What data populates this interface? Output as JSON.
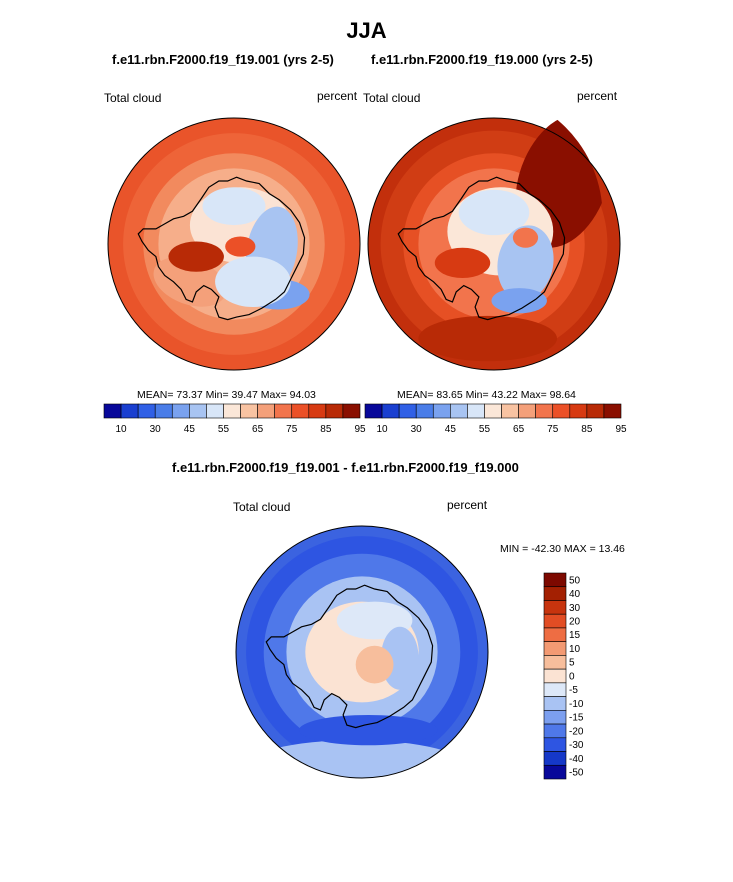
{
  "figure": {
    "title": "JJA",
    "left_panel_title": "f.e11.rbn.F2000.f19_f19.001 (yrs 2-5)",
    "right_panel_title": "f.e11.rbn.F2000.f19_f19.000 (yrs 2-5)",
    "diff_panel_title": "f.e11.rbn.F2000.f19_f19.001 - f.e11.rbn.F2000.f19_f19.000"
  },
  "colors": {
    "abs_scale": [
      "#08089a",
      "#1a3fd0",
      "#3060e6",
      "#4a7de8",
      "#7aa2ef",
      "#a8c4f2",
      "#d8e6f8",
      "#fbe7d8",
      "#f8c3a2",
      "#f4a07a",
      "#f2744c",
      "#eb5027",
      "#d73a12",
      "#b82a06",
      "#8a0f00"
    ],
    "diff_scale": [
      "#08089a",
      "#1538c8",
      "#2e55e2",
      "#4f78e9",
      "#7c9fef",
      "#a9c3f3",
      "#dde8f8",
      "#fbe3d3",
      "#f7be9c",
      "#f39a73",
      "#ee6d43",
      "#e24d24",
      "#c7340e",
      "#a32002",
      "#7d0900"
    ],
    "ocean_left_base": "#e9542a",
    "ocean_right_base": "#c22f0c",
    "ocean_diff_base": "#3b63e0"
  },
  "chart_data": [
    {
      "type": "heatmap",
      "projection": "south-polar-stereographic",
      "subtitle": "Total cloud",
      "units": "percent",
      "stats": {
        "mean": 73.37,
        "min": 39.47,
        "max": 94.03
      },
      "stats_text": "MEAN=  73.37  Min=  39.47  Max=  94.03",
      "colorbar": {
        "orientation": "horizontal",
        "levels": [
          10,
          20,
          30,
          40,
          45,
          50,
          55,
          60,
          65,
          70,
          75,
          80,
          85,
          90,
          95
        ],
        "labeled_levels": [
          "10",
          "30",
          "45",
          "55",
          "65",
          "75",
          "85",
          "95"
        ]
      }
    },
    {
      "type": "heatmap",
      "projection": "south-polar-stereographic",
      "subtitle": "Total cloud",
      "units": "percent",
      "stats": {
        "mean": 83.65,
        "min": 43.22,
        "max": 98.64
      },
      "stats_text": "MEAN=  83.65  Min=  43.22  Max=  98.64",
      "colorbar": {
        "orientation": "horizontal",
        "levels": [
          10,
          20,
          30,
          40,
          45,
          50,
          55,
          60,
          65,
          70,
          75,
          80,
          85,
          90,
          95
        ],
        "labeled_levels": [
          "10",
          "30",
          "45",
          "55",
          "65",
          "75",
          "85",
          "95"
        ]
      }
    },
    {
      "type": "heatmap",
      "projection": "south-polar-stereographic",
      "subtitle": "Total cloud",
      "units": "percent",
      "stats": {
        "min": -42.3,
        "max": 13.46
      },
      "stats_text": "MIN = -42.30 MAX =  13.46",
      "colorbar": {
        "orientation": "vertical",
        "levels": [
          50,
          40,
          30,
          20,
          15,
          10,
          5,
          0,
          -5,
          -10,
          -15,
          -20,
          -30,
          -40,
          -50
        ],
        "labeled_levels": [
          "50",
          "40",
          "30",
          "20",
          "15",
          "10",
          "5",
          "0",
          "-5",
          "-10",
          "-15",
          "-20",
          "-30",
          "-40",
          "-50"
        ]
      }
    }
  ]
}
